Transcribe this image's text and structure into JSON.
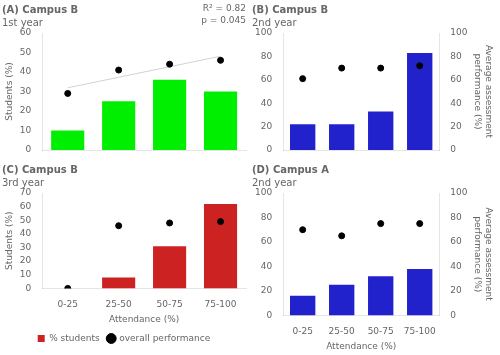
{
  "chart_data": [
    {
      "type": "bar",
      "title": "(A) Campus B",
      "subtitle": "1st year",
      "categories": [
        "0-25",
        "25-50",
        "50-75",
        "75-100"
      ],
      "ylabel": "Students (%)",
      "ylim": [
        0,
        60
      ],
      "yticks": [
        0,
        10,
        20,
        30,
        40,
        50,
        60
      ],
      "grid": false,
      "tick_labels": "y",
      "annotations": [
        "R² = 0.82",
        "p = 0.045"
      ],
      "series": [
        {
          "type": "bar",
          "color": "#00ee00",
          "values": [
            10,
            25,
            36,
            30
          ]
        },
        {
          "type": "scatter",
          "color": "black",
          "marker": "circle",
          "values": [
            29,
            41,
            44,
            46
          ]
        },
        {
          "type": "line",
          "color": "#d3d3d3",
          "values": [
            31.9,
            37.3,
            42.7,
            48.1
          ]
        }
      ]
    },
    {
      "type": "bar",
      "title": "(B) Campus B",
      "subtitle": "2nd year",
      "categories": [
        "0-25",
        "25-50",
        "50-75",
        "75-100"
      ],
      "ylim": [
        0,
        100
      ],
      "yticks": [
        0,
        20,
        40,
        60,
        80,
        100
      ],
      "y2label": "Average assessment performance (%)",
      "y2lim": [
        0,
        100
      ],
      "y2ticks": [
        0,
        20,
        40,
        60,
        80,
        100
      ],
      "grid": false,
      "tick_labels": "y",
      "series": [
        {
          "type": "bar",
          "color": "#2222cc",
          "values": [
            22,
            22,
            33,
            83
          ]
        },
        {
          "type": "scatter",
          "color": "black",
          "marker": "circle",
          "axis": "y2",
          "values": [
            61,
            70,
            70,
            72
          ]
        }
      ]
    },
    {
      "type": "bar",
      "title": "(C) Campus B",
      "subtitle": "3rd year",
      "categories": [
        "0-25",
        "25-50",
        "50-75",
        "75-100"
      ],
      "xlabel": "Attendance (%)",
      "ylabel": "Students (%)",
      "ylim": [
        0,
        70
      ],
      "yticks": [
        0,
        10,
        20,
        30,
        40,
        50,
        60,
        70
      ],
      "grid": false,
      "legend": "bottom",
      "series": [
        {
          "type": "bar",
          "name": "% students",
          "color": "#cc2222",
          "values": [
            0,
            8,
            31,
            62
          ]
        },
        {
          "type": "scatter",
          "name": "overall performance",
          "color": "black",
          "marker": "circle",
          "values": [
            0,
            46,
            48,
            49
          ]
        }
      ]
    },
    {
      "type": "bar",
      "title": "(D) Campus A",
      "subtitle": "2nd year",
      "categories": [
        "0-25",
        "25-50",
        "50-75",
        "75-100"
      ],
      "xlabel": "Attendance (%)",
      "ylim": [
        0,
        100
      ],
      "yticks": [
        0,
        20,
        40,
        60,
        80,
        100
      ],
      "y2label": "Average assessment performance (%)",
      "y2lim": [
        0,
        100
      ],
      "y2ticks": [
        0,
        20,
        40,
        60,
        80,
        100
      ],
      "grid": false,
      "series": [
        {
          "type": "bar",
          "color": "#2222cc",
          "values": [
            16,
            25,
            32,
            38
          ]
        },
        {
          "type": "scatter",
          "color": "black",
          "marker": "circle",
          "axis": "y2",
          "values": [
            70,
            65,
            75,
            75
          ]
        }
      ]
    }
  ]
}
